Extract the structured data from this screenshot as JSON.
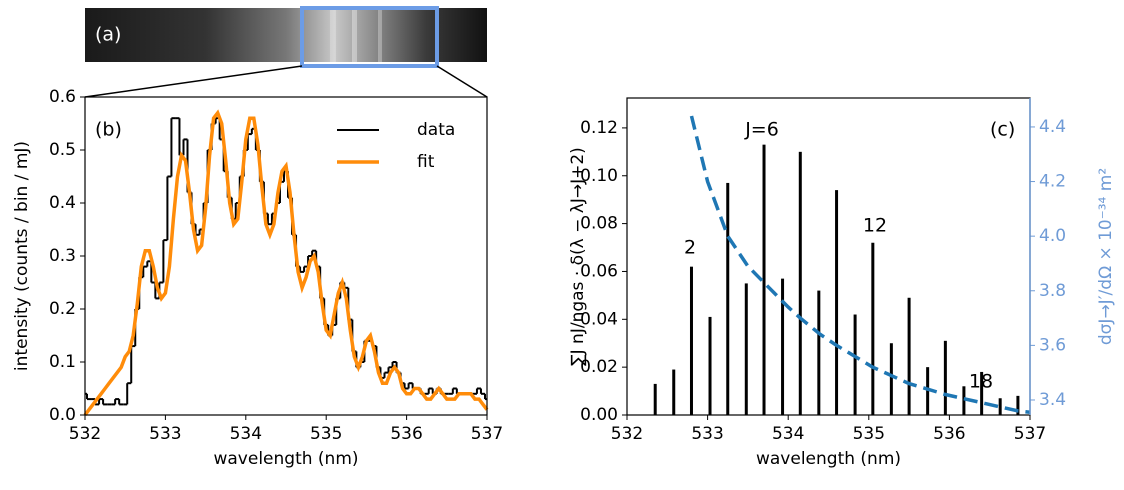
{
  "panel_a": {
    "label": "(a)"
  },
  "chart_data": [
    {
      "type": "line",
      "panel_label": "(b)",
      "xlabel": "wavelength (nm)",
      "ylabel": "intensity  (counts / bin / mJ)",
      "xlim": [
        532,
        537
      ],
      "ylim": [
        0,
        0.6
      ],
      "xticks": [
        532,
        533,
        534,
        535,
        536,
        537
      ],
      "yticks": [
        {
          "value": 0,
          "label": "0.0"
        },
        0.1,
        0.2,
        0.3,
        0.4,
        0.5,
        0.6
      ],
      "legend": "upper right",
      "x": [
        532,
        532.05,
        532.1,
        532.15,
        532.2,
        532.25,
        532.3,
        532.35,
        532.4,
        532.45,
        532.5,
        532.55,
        532.6,
        532.65,
        532.7,
        532.75,
        532.8,
        532.85,
        532.9,
        532.95,
        533,
        533.05,
        533.1,
        533.15,
        533.2,
        533.25,
        533.3,
        533.35,
        533.4,
        533.45,
        533.5,
        533.55,
        533.6,
        533.65,
        533.7,
        533.75,
        533.8,
        533.85,
        533.9,
        533.95,
        534,
        534.05,
        534.1,
        534.15,
        534.2,
        534.25,
        534.3,
        534.35,
        534.4,
        534.45,
        534.5,
        534.55,
        534.6,
        534.65,
        534.7,
        534.75,
        534.8,
        534.85,
        534.9,
        534.95,
        535,
        535.05,
        535.1,
        535.15,
        535.2,
        535.25,
        535.3,
        535.35,
        535.4,
        535.45,
        535.5,
        535.55,
        535.6,
        535.65,
        535.7,
        535.75,
        535.8,
        535.85,
        535.9,
        535.95,
        536,
        536.05,
        536.1,
        536.15,
        536.2,
        536.25,
        536.3,
        536.35,
        536.4,
        536.45,
        536.5,
        536.55,
        536.6,
        536.65,
        536.7,
        536.75,
        536.8,
        536.85,
        536.9,
        536.95,
        537
      ],
      "series": [
        {
          "name": "data",
          "color": "#000000",
          "drawstyle": "steps",
          "values": [
            0.04,
            0.03,
            0.03,
            0.02,
            0.03,
            0.02,
            0.02,
            0.02,
            0.03,
            0.02,
            0.02,
            0.06,
            0.13,
            0.2,
            0.26,
            0.28,
            0.29,
            0.25,
            0.22,
            0.25,
            0.33,
            0.45,
            0.56,
            0.56,
            0.49,
            0.52,
            0.42,
            0.36,
            0.34,
            0.35,
            0.4,
            0.5,
            0.55,
            0.56,
            0.52,
            0.46,
            0.41,
            0.37,
            0.4,
            0.45,
            0.5,
            0.53,
            0.54,
            0.5,
            0.44,
            0.38,
            0.36,
            0.38,
            0.4,
            0.44,
            0.46,
            0.41,
            0.34,
            0.28,
            0.27,
            0.28,
            0.3,
            0.31,
            0.28,
            0.22,
            0.17,
            0.15,
            0.17,
            0.22,
            0.25,
            0.24,
            0.18,
            0.12,
            0.09,
            0.1,
            0.14,
            0.14,
            0.13,
            0.09,
            0.07,
            0.08,
            0.09,
            0.1,
            0.08,
            0.06,
            0.05,
            0.06,
            0.05,
            0.05,
            0.04,
            0.04,
            0.05,
            0.04,
            0.05,
            0.04,
            0.04,
            0.04,
            0.05,
            0.04,
            0.04,
            0.04,
            0.04,
            0.04,
            0.05,
            0.04,
            0.03
          ]
        },
        {
          "name": "fit",
          "color": "#ff8c0a",
          "values": [
            0,
            0.01,
            0.02,
            0.03,
            0.04,
            0.05,
            0.06,
            0.07,
            0.08,
            0.09,
            0.11,
            0.12,
            0.15,
            0.21,
            0.28,
            0.31,
            0.31,
            0.28,
            0.24,
            0.22,
            0.23,
            0.28,
            0.37,
            0.45,
            0.49,
            0.48,
            0.42,
            0.35,
            0.31,
            0.32,
            0.39,
            0.49,
            0.56,
            0.57,
            0.55,
            0.48,
            0.4,
            0.36,
            0.37,
            0.44,
            0.52,
            0.56,
            0.56,
            0.51,
            0.43,
            0.36,
            0.34,
            0.36,
            0.42,
            0.46,
            0.47,
            0.42,
            0.34,
            0.27,
            0.24,
            0.26,
            0.29,
            0.3,
            0.27,
            0.21,
            0.16,
            0.15,
            0.19,
            0.23,
            0.25,
            0.22,
            0.16,
            0.11,
            0.09,
            0.11,
            0.14,
            0.15,
            0.12,
            0.08,
            0.06,
            0.06,
            0.08,
            0.09,
            0.08,
            0.05,
            0.04,
            0.04,
            0.05,
            0.05,
            0.04,
            0.03,
            0.03,
            0.04,
            0.05,
            0.04,
            0.03,
            0.03,
            0.03,
            0.04,
            0.04,
            0.04,
            0.04,
            0.03,
            0.03,
            0.02,
            0.01
          ]
        }
      ]
    },
    {
      "type": "bar",
      "panel_label": "(c)",
      "xlabel": "wavelength (nm)",
      "ylabel": "∑J nJ/ngas · δ(λ − λJ→J+2)",
      "y2label": "dσJ→J′/dΩ × 10⁻³⁴ m²",
      "xlim": [
        532,
        537
      ],
      "ylim": [
        0,
        0.1325
      ],
      "y2lim": [
        3.345,
        4.506
      ],
      "xticks": [
        532,
        533,
        534,
        535,
        536,
        537
      ],
      "yticks": [
        {
          "value": 0,
          "label": "0.00"
        },
        {
          "value": 0.02,
          "label": "0.02"
        },
        {
          "value": 0.04,
          "label": "0.04"
        },
        {
          "value": 0.06,
          "label": "0.06"
        },
        {
          "value": 0.08,
          "label": "0.08"
        },
        {
          "value": 0.1,
          "label": "0.10"
        },
        {
          "value": 0.12,
          "label": "0.12"
        }
      ],
      "y2ticks": [
        3.4,
        3.6,
        3.8,
        {
          "value": 4,
          "label": "4.0"
        },
        4.2,
        4.4
      ],
      "y2color": "#6f9bd6",
      "annotations": [
        "2",
        "J=6",
        "12",
        "18"
      ],
      "series": [
        {
          "color": "#000000",
          "x": [
            532.35,
            532.58,
            532.8,
            533.03,
            533.25,
            533.48,
            533.7,
            533.93,
            534.15,
            534.38,
            534.6,
            534.83,
            535.05,
            535.28,
            535.5,
            535.73,
            535.95,
            536.18,
            536.4,
            536.63,
            536.85
          ],
          "values": [
            0.013,
            0.019,
            0.062,
            0.041,
            0.097,
            0.055,
            0.113,
            0.057,
            0.11,
            0.052,
            0.094,
            0.042,
            0.072,
            0.03,
            0.049,
            0.02,
            0.031,
            0.012,
            0.018,
            0.007,
            0.008
          ]
        },
        {
          "type": "line",
          "axis": "y2",
          "color": "#1f77b4",
          "dashed": true,
          "x": [
            532.8,
            533,
            533.25,
            533.5,
            533.7,
            534,
            534.15,
            534.4,
            534.6,
            535.05,
            535.5,
            535.95,
            536.4,
            536.85,
            537
          ],
          "values": [
            4.44,
            4.2,
            4.0,
            3.89,
            3.83,
            3.74,
            3.7,
            3.64,
            3.6,
            3.52,
            3.46,
            3.42,
            3.39,
            3.36,
            3.355
          ]
        }
      ]
    }
  ]
}
